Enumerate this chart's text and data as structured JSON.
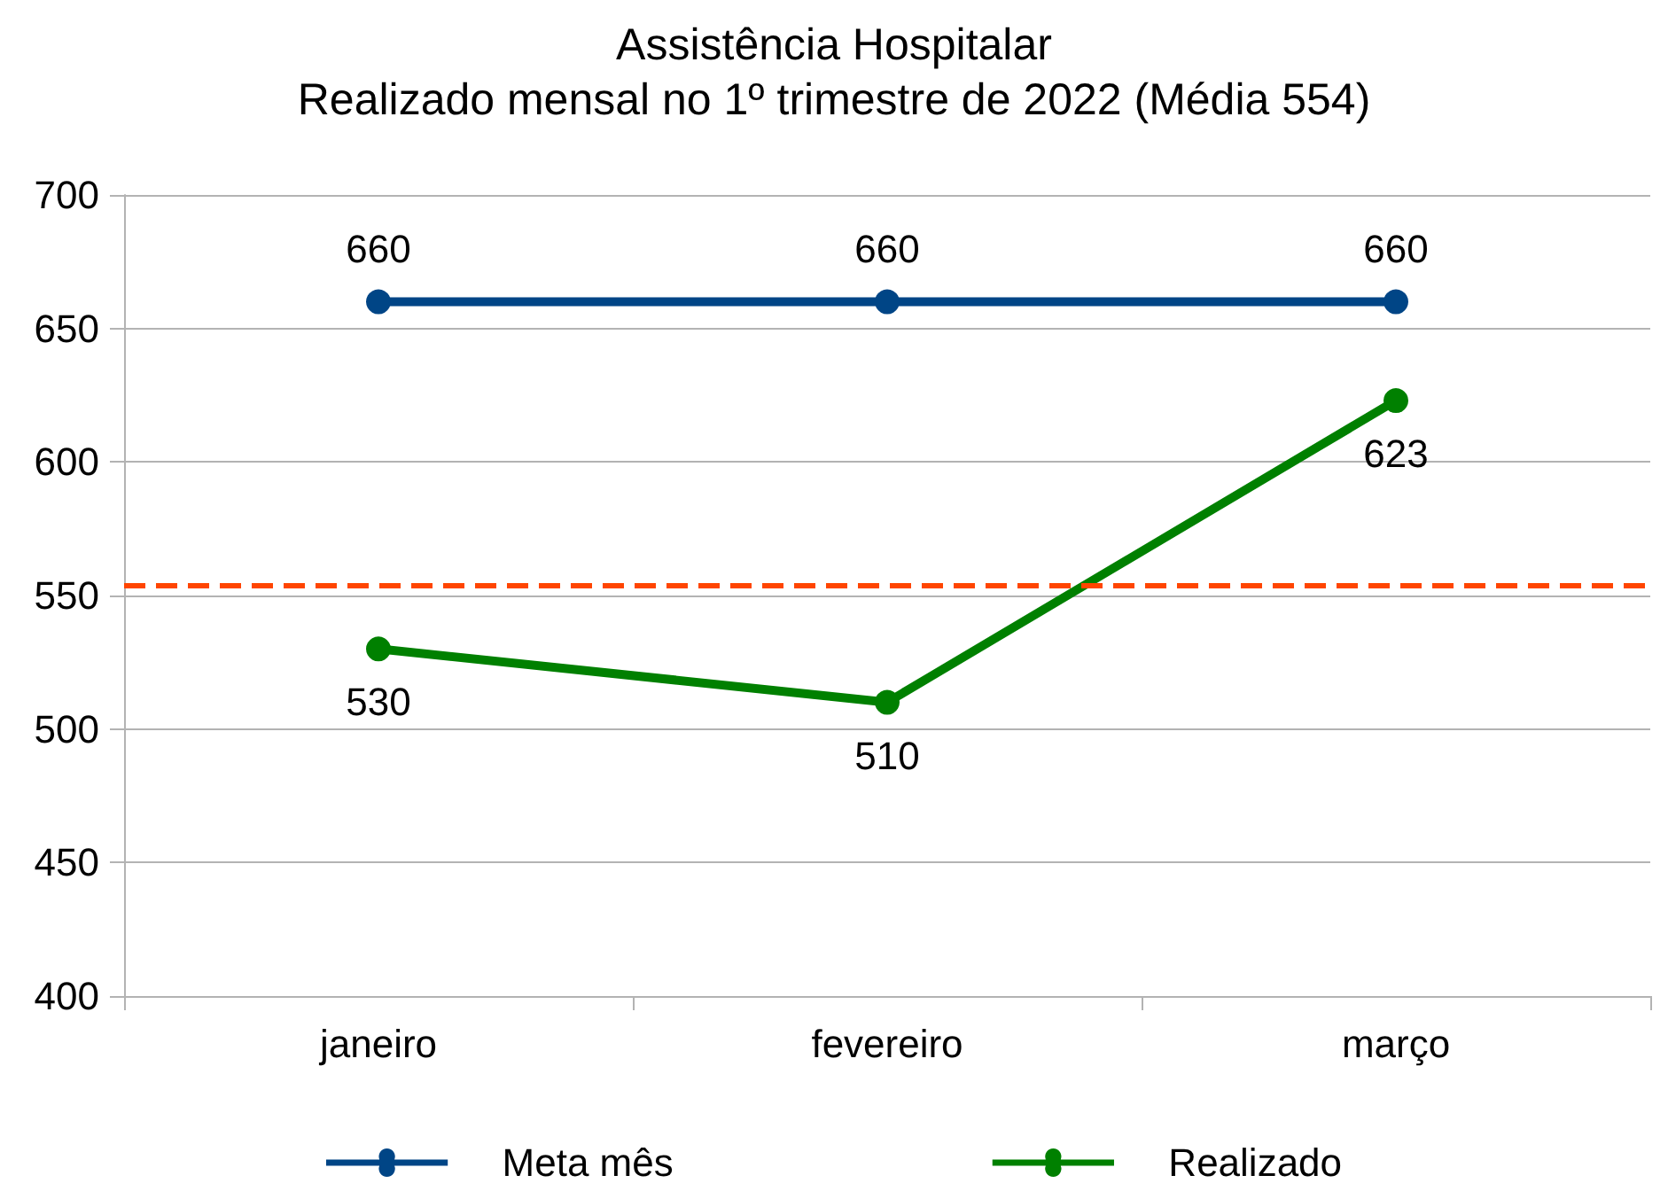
{
  "chart_data": {
    "type": "line",
    "title": "Assistência Hospitalar",
    "subtitle": "Realizado mensal no 1º trimestre de 2022 (Média 554)",
    "categories": [
      "janeiro",
      "fevereiro",
      "março"
    ],
    "series": [
      {
        "name": "Meta mês",
        "color": "#004586",
        "values": [
          660,
          660,
          660
        ]
      },
      {
        "name": "Realizado",
        "color": "#008000",
        "values": [
          530,
          510,
          623
        ]
      }
    ],
    "ylim": [
      400,
      700
    ],
    "yticks": [
      400,
      450,
      500,
      550,
      600,
      650,
      700
    ],
    "grid": "y",
    "legend": "bottom",
    "marker": "circle",
    "line_style": "solid",
    "data_labels": true,
    "ref_lines": [
      {
        "axis": "y",
        "value": 554,
        "color": "#ff4500",
        "line_style": "dashed"
      }
    ]
  }
}
